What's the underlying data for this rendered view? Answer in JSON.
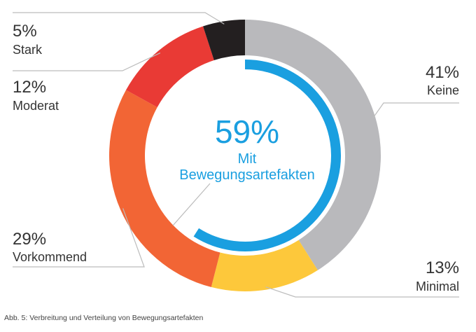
{
  "chart_data": {
    "type": "pie",
    "variant": "donut",
    "slices": [
      {
        "label": "Keine",
        "value": 41,
        "pct_label": "41%",
        "color": "#b9b9bc"
      },
      {
        "label": "Minimal",
        "value": 13,
        "pct_label": "13%",
        "color": "#fdc83b"
      },
      {
        "label": "Vorkommend",
        "value": 29,
        "pct_label": "29%",
        "color": "#f26535"
      },
      {
        "label": "Moderat",
        "value": 12,
        "pct_label": "12%",
        "color": "#e93a35"
      },
      {
        "label": "Stark",
        "value": 5,
        "pct_label": "5%",
        "color": "#231f20"
      }
    ],
    "summary": {
      "value": 59,
      "pct_label": "59%",
      "line1": "Mit",
      "line2": "Bewegungsartefakten",
      "color": "#1a9fe0"
    }
  },
  "caption": "Abb. 5: Verbreitung und Verteilung von Bewegungsartefakten"
}
